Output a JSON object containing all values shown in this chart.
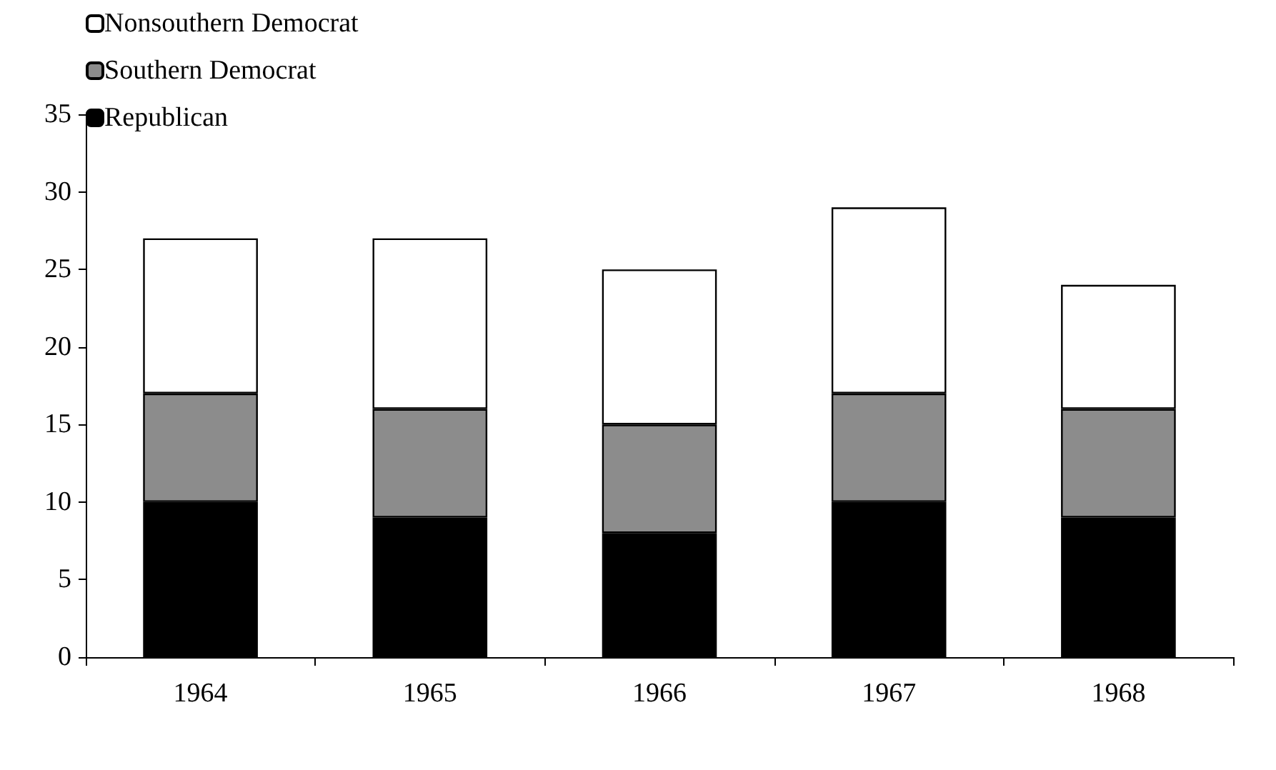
{
  "chart_data": {
    "type": "bar",
    "stacked": true,
    "categories": [
      "1964",
      "1965",
      "1966",
      "1967",
      "1968"
    ],
    "series": [
      {
        "name": "Republican",
        "color": "#000000",
        "values": [
          10,
          9,
          8,
          10,
          9
        ]
      },
      {
        "name": "Southern Democrat",
        "color": "#8c8c8c",
        "values": [
          7,
          7,
          7,
          7,
          7
        ]
      },
      {
        "name": "Nonsouthern Democrat",
        "color": "#ffffff",
        "values": [
          10,
          11,
          10,
          12,
          8
        ]
      }
    ],
    "ylim": [
      0,
      35
    ],
    "yticks": [
      0,
      5,
      10,
      15,
      20,
      25,
      30,
      35
    ],
    "grid": false,
    "legend": "top left"
  }
}
